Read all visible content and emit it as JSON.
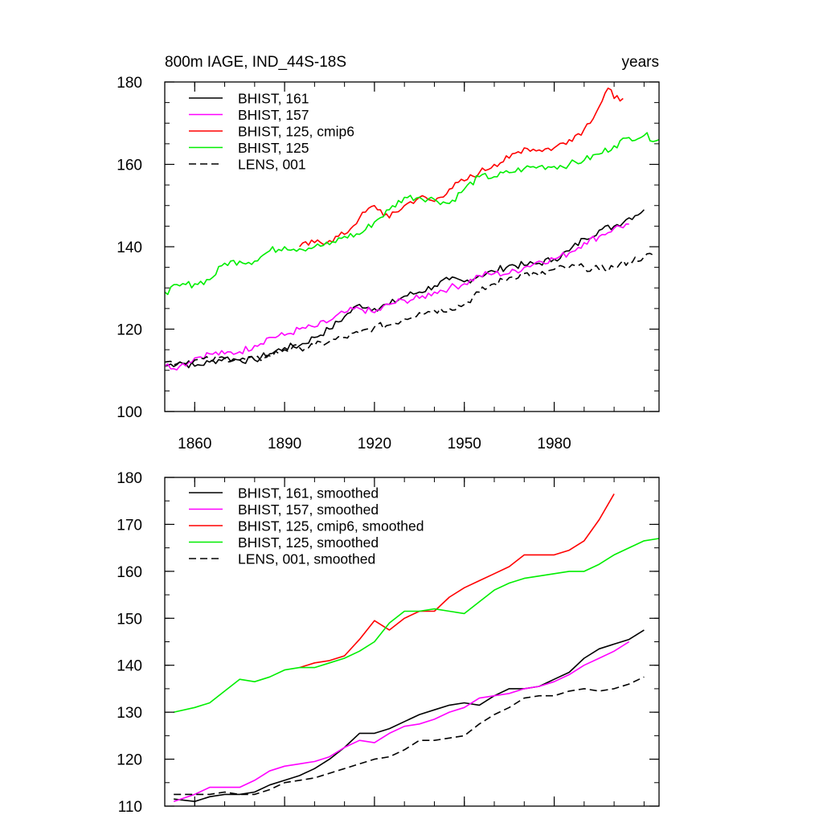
{
  "title_left": "800m IAGE, IND_44S-18S",
  "title_right": "years",
  "chart_data": [
    {
      "type": "line",
      "xlim": [
        1850,
        2015
      ],
      "ylim": [
        100,
        180
      ],
      "x_ticks": [
        1860,
        1890,
        1920,
        1950,
        1980
      ],
      "y_ticks": [
        100,
        120,
        140,
        160,
        180
      ],
      "y_minor_step": 5,
      "x_minor_step": 10,
      "show_x_labels": true,
      "noisy": true,
      "legend_position": "top-left",
      "series": [
        {
          "name": "BHIST, 161",
          "color": "#000000",
          "dash": false,
          "x": [
            1850,
            1855,
            1860,
            1865,
            1870,
            1875,
            1880,
            1885,
            1890,
            1895,
            1900,
            1905,
            1910,
            1915,
            1920,
            1925,
            1930,
            1935,
            1940,
            1945,
            1950,
            1955,
            1960,
            1965,
            1970,
            1975,
            1980,
            1985,
            1990,
            1995,
            2000,
            2005,
            2010
          ],
          "y": [
            111,
            112,
            111,
            112,
            113,
            112.5,
            112.5,
            114,
            115.5,
            116,
            118,
            120,
            123,
            126,
            125,
            126,
            128,
            129,
            130.5,
            132,
            131.5,
            133,
            134,
            135.5,
            135.5,
            136,
            137,
            139,
            142,
            144,
            145,
            147,
            149
          ]
        },
        {
          "name": "BHIST, 157",
          "color": "#ff00ff",
          "dash": false,
          "x": [
            1850,
            1855,
            1860,
            1865,
            1870,
            1875,
            1880,
            1885,
            1890,
            1895,
            1900,
            1905,
            1910,
            1915,
            1920,
            1925,
            1930,
            1935,
            1940,
            1945,
            1950,
            1955,
            1960,
            1965,
            1970,
            1975,
            1980,
            1985,
            1990,
            1995,
            2000,
            2005
          ],
          "y": [
            111,
            111,
            113,
            114,
            114,
            114.5,
            116,
            118,
            118.5,
            120,
            120.5,
            122,
            124,
            125,
            124,
            126,
            127,
            127.5,
            129,
            130,
            131,
            133,
            133.5,
            133.5,
            135,
            136.5,
            137,
            138.5,
            141,
            142.5,
            144.5,
            145.5
          ]
        },
        {
          "name": "BHIST, 125, cmip6",
          "color": "#ff0000",
          "dash": false,
          "x": [
            1895,
            1900,
            1905,
            1910,
            1915,
            1920,
            1925,
            1930,
            1935,
            1940,
            1945,
            1950,
            1955,
            1960,
            1965,
            1970,
            1975,
            1980,
            1985,
            1990,
            1995,
            1998,
            2000,
            2003
          ],
          "y": [
            140,
            141,
            141.5,
            143,
            147,
            150,
            147,
            150,
            152,
            151,
            154,
            156,
            158,
            160,
            161.5,
            164,
            163.5,
            164,
            166,
            168.5,
            174,
            178.5,
            176,
            176
          ]
        },
        {
          "name": "BHIST, 125",
          "color": "#00ee00",
          "dash": false,
          "x": [
            1850,
            1855,
            1860,
            1865,
            1870,
            1875,
            1880,
            1885,
            1890,
            1895,
            1900,
            1905,
            1910,
            1915,
            1920,
            1925,
            1930,
            1935,
            1940,
            1945,
            1950,
            1955,
            1960,
            1965,
            1970,
            1975,
            1980,
            1985,
            1990,
            1995,
            2000,
            2005,
            2010,
            2015
          ],
          "y": [
            129,
            130.5,
            131,
            132,
            136,
            136.5,
            136.5,
            139,
            140,
            139.5,
            140,
            140.5,
            142.5,
            143,
            146,
            149,
            152,
            152,
            151.5,
            150.5,
            154,
            157,
            157,
            158,
            159,
            159.5,
            159.5,
            160,
            161,
            162.5,
            164.5,
            166.5,
            167,
            166
          ]
        },
        {
          "name": "LENS, 001",
          "color": "#000000",
          "dash": true,
          "x": [
            1850,
            1855,
            1860,
            1865,
            1870,
            1875,
            1880,
            1885,
            1890,
            1895,
            1900,
            1905,
            1910,
            1915,
            1920,
            1925,
            1930,
            1935,
            1940,
            1945,
            1950,
            1955,
            1960,
            1965,
            1970,
            1975,
            1980,
            1985,
            1990,
            1995,
            2000,
            2005,
            2010,
            2013
          ],
          "y": [
            112,
            112,
            112.5,
            112.5,
            113,
            112.5,
            112.5,
            113.5,
            115,
            115.5,
            116,
            117,
            118,
            119,
            120.5,
            121,
            122.5,
            124,
            124.5,
            125,
            126,
            129,
            131,
            132.5,
            133.5,
            133,
            134.5,
            135,
            135,
            134.5,
            135,
            136.5,
            137.5,
            138
          ]
        }
      ]
    },
    {
      "type": "line",
      "xlim": [
        1850,
        2015
      ],
      "ylim": [
        110,
        180
      ],
      "x_ticks": [
        1860,
        1890,
        1920,
        1950,
        1980
      ],
      "y_ticks": [
        110,
        120,
        130,
        140,
        150,
        160,
        170,
        180
      ],
      "y_minor_step": 5,
      "x_minor_step": 10,
      "show_x_labels": false,
      "noisy": false,
      "legend_position": "top-left",
      "series": [
        {
          "name": "BHIST, 161, smoothed",
          "color": "#000000",
          "dash": false,
          "x": [
            1853,
            1860,
            1865,
            1870,
            1875,
            1880,
            1885,
            1890,
            1895,
            1900,
            1905,
            1910,
            1915,
            1920,
            1925,
            1930,
            1935,
            1940,
            1945,
            1950,
            1955,
            1960,
            1965,
            1970,
            1975,
            1980,
            1985,
            1990,
            1995,
            2000,
            2005,
            2010
          ],
          "y": [
            111.5,
            111,
            112,
            112.5,
            112.5,
            113,
            114.5,
            115.5,
            116.5,
            118,
            120,
            122.5,
            125.5,
            125.5,
            126.5,
            128,
            129.5,
            130.5,
            131.5,
            132,
            131.5,
            133.5,
            135,
            135,
            135.5,
            137,
            138.5,
            141.5,
            143.5,
            144.5,
            145.5,
            147.5
          ]
        },
        {
          "name": "BHIST, 157, smoothed",
          "color": "#ff00ff",
          "dash": false,
          "x": [
            1853,
            1860,
            1865,
            1870,
            1875,
            1880,
            1885,
            1890,
            1895,
            1900,
            1905,
            1910,
            1915,
            1920,
            1925,
            1930,
            1935,
            1940,
            1945,
            1950,
            1955,
            1960,
            1965,
            1970,
            1975,
            1980,
            1985,
            1990,
            1995,
            2000,
            2005
          ],
          "y": [
            111,
            112.5,
            114,
            114,
            114,
            115.5,
            117.5,
            118.5,
            119,
            119.5,
            120.5,
            122.5,
            124,
            123.5,
            125.5,
            127,
            127.5,
            128.5,
            130,
            131,
            133,
            133.5,
            134,
            135,
            135.5,
            136.5,
            138,
            140,
            141.5,
            143,
            145
          ]
        },
        {
          "name": "BHIST, 125, cmip6, smoothed",
          "color": "#ff0000",
          "dash": false,
          "x": [
            1895,
            1900,
            1905,
            1910,
            1915,
            1920,
            1925,
            1930,
            1935,
            1940,
            1945,
            1950,
            1955,
            1960,
            1965,
            1970,
            1975,
            1980,
            1985,
            1990,
            1995,
            2000
          ],
          "y": [
            139.5,
            140.5,
            141,
            142,
            145.5,
            149.5,
            147.5,
            150,
            151.5,
            151.5,
            154.5,
            156.5,
            158,
            159.5,
            161,
            163.5,
            163.5,
            163.5,
            164.5,
            166.5,
            171,
            176.5
          ]
        },
        {
          "name": "BHIST, 125, smoothed",
          "color": "#00ee00",
          "dash": false,
          "x": [
            1853,
            1860,
            1865,
            1870,
            1875,
            1880,
            1885,
            1890,
            1895,
            1900,
            1905,
            1910,
            1915,
            1920,
            1925,
            1930,
            1935,
            1940,
            1945,
            1950,
            1955,
            1960,
            1965,
            1970,
            1975,
            1980,
            1985,
            1990,
            1995,
            2000,
            2005,
            2010,
            2015
          ],
          "y": [
            130,
            131,
            132,
            134.5,
            137,
            136.5,
            137.5,
            139,
            139.5,
            139.5,
            140.5,
            141.5,
            143,
            145,
            149,
            151.5,
            151.5,
            152,
            151.5,
            151,
            153.5,
            156,
            157.5,
            158.5,
            159,
            159.5,
            160,
            160,
            161.5,
            163.5,
            165,
            166.5,
            167
          ]
        },
        {
          "name": "LENS, 001, smoothed",
          "color": "#000000",
          "dash": true,
          "x": [
            1853,
            1860,
            1865,
            1870,
            1875,
            1880,
            1885,
            1890,
            1895,
            1900,
            1905,
            1910,
            1915,
            1920,
            1925,
            1930,
            1935,
            1940,
            1945,
            1950,
            1955,
            1960,
            1965,
            1970,
            1975,
            1980,
            1985,
            1990,
            1995,
            2000,
            2005,
            2010
          ],
          "y": [
            112.5,
            112.5,
            112.5,
            113,
            112.5,
            112.5,
            113.5,
            115,
            115.5,
            116,
            117,
            118,
            119,
            120,
            120.5,
            122,
            124,
            124,
            124.5,
            125,
            127.5,
            129.5,
            131,
            133,
            133.5,
            133.5,
            134.5,
            135,
            134.5,
            135,
            136,
            137.5
          ]
        }
      ]
    }
  ]
}
